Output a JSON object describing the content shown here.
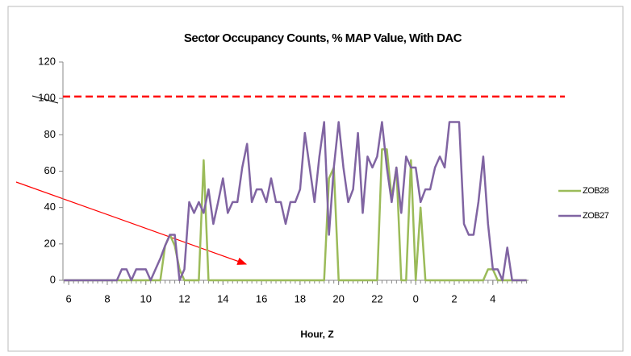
{
  "chart_data": {
    "type": "line",
    "title": "Sector Occupancy Counts, % MAP Value, With DAC",
    "x_label": "Hour, Z",
    "x": [
      5.75,
      6,
      6.25,
      6.5,
      6.75,
      7,
      7.25,
      7.5,
      7.75,
      8,
      8.25,
      8.5,
      8.75,
      9,
      9.25,
      9.5,
      9.75,
      10,
      10.25,
      10.5,
      10.75,
      11,
      11.25,
      11.5,
      11.75,
      12,
      12.25,
      12.5,
      12.75,
      13,
      13.25,
      13.5,
      13.75,
      14,
      14.25,
      14.5,
      14.75,
      15,
      15.25,
      15.5,
      15.75,
      16,
      16.25,
      16.5,
      16.75,
      17,
      17.25,
      17.5,
      17.75,
      18,
      18.25,
      18.5,
      18.75,
      19,
      19.25,
      19.5,
      19.75,
      20,
      20.25,
      20.5,
      20.75,
      21,
      21.25,
      21.5,
      21.75,
      22,
      22.25,
      22.5,
      22.75,
      23,
      23.25,
      23.5,
      23.75,
      24,
      24.25,
      24.5,
      24.75,
      25,
      25.25,
      25.5,
      25.75,
      26,
      26.25,
      26.5,
      26.75,
      27,
      27.25,
      27.5,
      27.75,
      28,
      28.25,
      28.5,
      28.75,
      29,
      29.25,
      29.5,
      29.75
    ],
    "series": [
      {
        "name": "ZOB28",
        "color": "#9bbb59",
        "values": [
          0,
          0,
          0,
          0,
          0,
          0,
          0,
          0,
          0,
          0,
          0,
          0,
          0,
          0,
          0,
          0,
          0,
          0,
          0,
          0,
          0,
          19,
          25,
          19,
          6,
          0,
          0,
          0,
          0,
          66,
          0,
          0,
          0,
          0,
          0,
          0,
          0,
          0,
          0,
          0,
          0,
          0,
          0,
          0,
          0,
          0,
          0,
          0,
          0,
          0,
          0,
          0,
          0,
          0,
          0,
          56,
          62,
          0,
          0,
          0,
          0,
          0,
          0,
          0,
          0,
          0,
          72,
          72,
          45,
          62,
          0,
          0,
          66,
          0,
          40,
          0,
          0,
          0,
          0,
          0,
          0,
          0,
          0,
          0,
          0,
          0,
          0,
          0,
          6,
          6,
          0,
          0,
          0,
          0,
          0,
          0,
          0
        ]
      },
      {
        "name": "ZOB27",
        "color": "#8064a2",
        "values": [
          0,
          0,
          0,
          0,
          0,
          0,
          0,
          0,
          0,
          0,
          0,
          0,
          6,
          6,
          0,
          6,
          6,
          6,
          0,
          6,
          12,
          19,
          25,
          25,
          0,
          6,
          43,
          37,
          43,
          37,
          50,
          31,
          43,
          56,
          37,
          43,
          43,
          62,
          75,
          43,
          50,
          50,
          43,
          56,
          43,
          43,
          31,
          43,
          43,
          50,
          81,
          62,
          43,
          68,
          87,
          25,
          62,
          87,
          62,
          43,
          50,
          81,
          37,
          68,
          62,
          68,
          87,
          62,
          43,
          62,
          37,
          68,
          62,
          62,
          43,
          50,
          50,
          62,
          68,
          62,
          87,
          87,
          87,
          31,
          25,
          25,
          43,
          68,
          31,
          6,
          6,
          0,
          18,
          0,
          0,
          0,
          0
        ]
      }
    ],
    "reference_line": {
      "value": 101,
      "color": "#ff0000"
    },
    "xlim": [
      5.7,
      29.85
    ],
    "xticks": [
      6,
      8,
      10,
      12,
      14,
      16,
      18,
      20,
      22,
      {
        "value": 24,
        "label": "0"
      },
      {
        "value": 26,
        "label": "2"
      },
      {
        "value": 28,
        "label": "4"
      }
    ],
    "ylim": [
      0,
      120
    ],
    "yticks": [
      0,
      20,
      40,
      60,
      80,
      100,
      120
    ],
    "grid": false,
    "legend": "right"
  }
}
